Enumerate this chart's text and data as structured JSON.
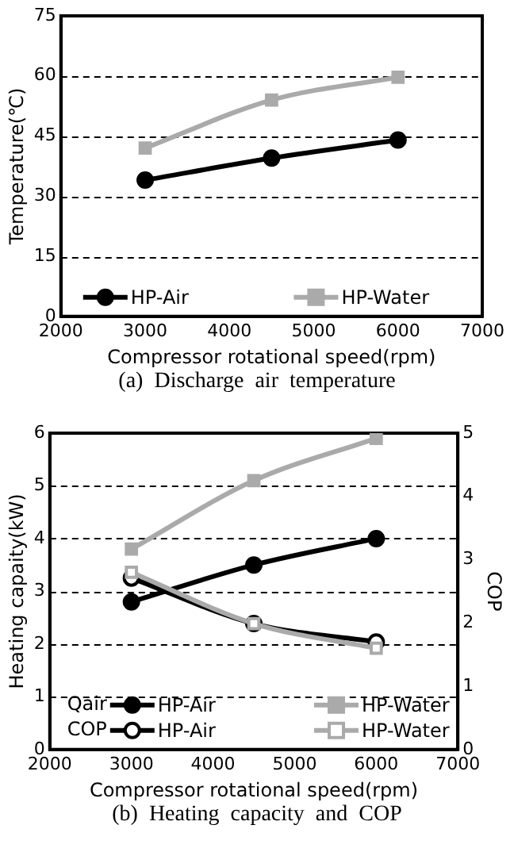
{
  "chart_data": [
    {
      "type": "line",
      "title": "(a)  Discharge  air  temperature",
      "xlabel": "Compressor rotational speed(rpm)",
      "ylabel": "Temperature(℃)",
      "x": [
        3000,
        4500,
        6000
      ],
      "series": [
        {
          "name": "HP-Air",
          "color": "#000000",
          "marker": "circle",
          "values": [
            34,
            39.5,
            44
          ]
        },
        {
          "name": "HP-Water",
          "color": "#aaaaaa",
          "marker": "square",
          "values": [
            42,
            54,
            59.7
          ]
        }
      ],
      "xlim": [
        2000,
        7000
      ],
      "xticks": [
        2000,
        3000,
        4000,
        5000,
        6000,
        7000
      ],
      "ylim": [
        0,
        75
      ],
      "yticks": [
        0,
        15,
        30,
        45,
        60,
        75
      ],
      "grid": "y",
      "legend": "bottom"
    },
    {
      "type": "line",
      "title": "(b)  Heating  capacity  and  COP",
      "xlabel": "Compressor rotational speed(rpm)",
      "ylabel": "Heating capaity(kW)",
      "y2label": "COP",
      "x": [
        3000,
        4500,
        6000
      ],
      "series": [
        {
          "name": "HP-Air",
          "color": "#000000",
          "marker": "circle",
          "values": [
            2.8,
            3.5,
            4.0
          ]
        },
        {
          "name": "HP-Water",
          "color": "#aaaaaa",
          "marker": "square",
          "values": [
            3.8,
            5.1,
            5.9
          ]
        },
        {
          "name": "HP-Air",
          "color": "#000000",
          "marker": "circle",
          "axis": "y2",
          "values": [
            2.71,
            1.99,
            1.7
          ]
        },
        {
          "name": "HP-Water",
          "color": "#aaaaaa",
          "marker": "square",
          "axis": "y2",
          "values": [
            2.8,
            1.99,
            1.6
          ]
        }
      ],
      "annotations": [
        "Qair",
        "COP"
      ],
      "xlim": [
        2000,
        7000
      ],
      "xticks": [
        2000,
        3000,
        4000,
        5000,
        6000,
        7000
      ],
      "ylim": [
        0,
        6
      ],
      "yticks": [
        0,
        1,
        2,
        3,
        4,
        5,
        6
      ],
      "y2lim": [
        0,
        5
      ],
      "y2ticks": [
        0,
        1,
        2,
        3,
        4,
        5
      ],
      "grid": "y",
      "legend": "bottom"
    }
  ]
}
